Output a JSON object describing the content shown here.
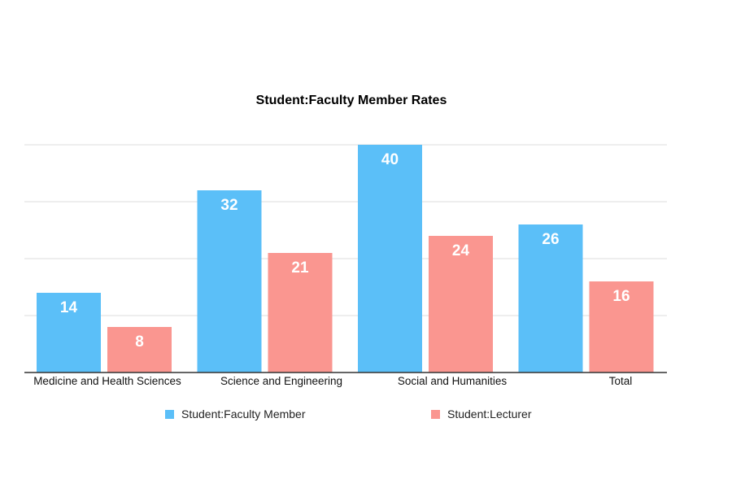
{
  "chart_data": {
    "type": "bar",
    "title": "Student:Faculty Member Rates",
    "categories": [
      "Medicine and Health Sciences",
      "Science and Engineering",
      "Social and Humanities",
      "Total"
    ],
    "series": [
      {
        "name": "Student:Faculty Member",
        "values": [
          14,
          32,
          40,
          26
        ],
        "color": "#5BBFF8"
      },
      {
        "name": "Student:Lecturer",
        "values": [
          8,
          21,
          24,
          16
        ],
        "color": "#FA9690"
      }
    ],
    "ylim": [
      0,
      40
    ],
    "gridlines": [
      10,
      20,
      30,
      40
    ],
    "grid": true,
    "legend_position": "bottom",
    "data_labels": true,
    "colors": {
      "grid": "#dddddd",
      "axis": "#333333",
      "label_text": "#ffffff"
    }
  }
}
